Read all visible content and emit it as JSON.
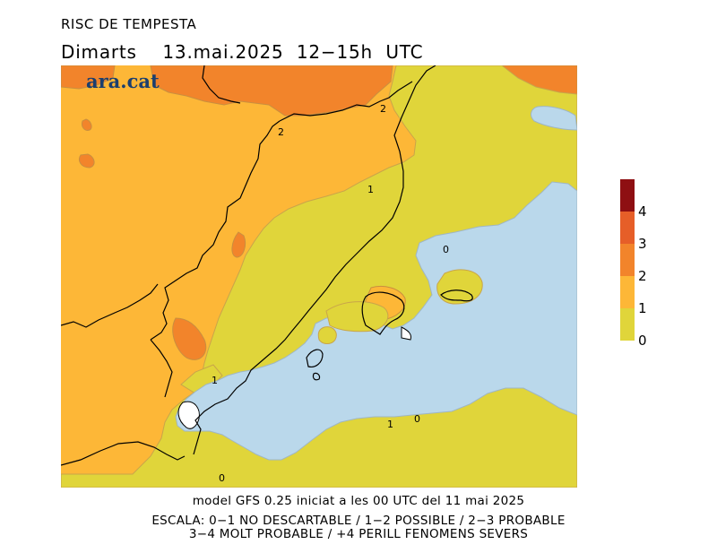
{
  "header": {
    "title": "RISC DE TEMPESTA",
    "subtitle": "Dimarts    13.mai.2025  12−15h  UTC"
  },
  "brand": {
    "name": "ara.cat",
    "color": "#1c3f6e"
  },
  "map": {
    "contour_labels": [
      "0",
      "0",
      "0",
      "1",
      "1",
      "1",
      "2",
      "2"
    ],
    "colors": {
      "sea": "#bad8eb",
      "level_0_1": "#e0d53a",
      "level_1_2": "#fdb737",
      "level_2_3": "#f2842b",
      "level_3_4": "#e65e28",
      "level_4_plus": "#8e0f12",
      "missing": "#ffffff"
    }
  },
  "legend": {
    "ticks": [
      "0",
      "1",
      "2",
      "3",
      "4"
    ],
    "colors": [
      "#e0d53a",
      "#fdb737",
      "#f2842b",
      "#e65e28",
      "#8e0f12"
    ]
  },
  "footer": {
    "model_line": "model GFS 0.25 iniciat a les 00 UTC del 11 mai 2025",
    "scale_line1": "ESCALA: 0−1 NO DESCARTABLE / 1−2 POSSIBLE / 2−3 PROBABLE",
    "scale_line2": "3−4 MOLT PROBABLE / +4 PERILL FENOMENS SEVERS"
  }
}
